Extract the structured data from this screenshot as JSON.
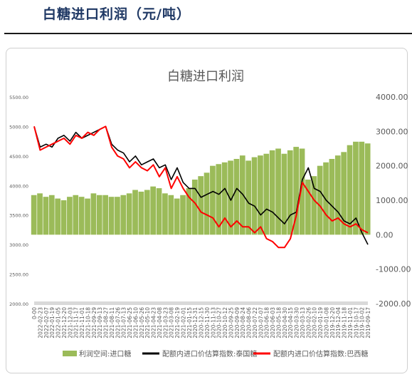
{
  "header": {
    "title": "白糖进口利润（元/吨）"
  },
  "chart_data": {
    "type": "line",
    "title": "白糖进口利润",
    "y_left": {
      "ticks": [
        "5500.00",
        "5000.00",
        "4500.00",
        "4000.00",
        "3500.00",
        "3000.00",
        "2500.00",
        "2000.00"
      ],
      "range": [
        2000,
        5500
      ]
    },
    "y_right": {
      "ticks": [
        "4000.00",
        "3000.00",
        "2000.00",
        "1000.00",
        "0.00",
        "-1000.00",
        "-2000.00"
      ],
      "range": [
        -2000,
        4000
      ]
    },
    "x_ticks": [
      "0-00",
      "2022-02-23",
      "2022-02-07",
      "2022-01-19",
      "2022-01-05",
      "2021-12-20",
      "2021-12-03",
      "2021-11-17",
      "2021-11-01",
      "2021-10-18",
      "2021-09-29",
      "2021-09-13",
      "2021-08-27",
      "2021-08-11",
      "2021-07-26",
      "2021-07-13",
      "2021-06-25",
      "2021-06-10",
      "2021-05-26",
      "2021-05-10",
      "2021-04-23",
      "2021-04-08",
      "2021-03-23",
      "2021-03-08",
      "2021-02-19",
      "2021-02-01",
      "2021-01-15",
      "2020-12-31",
      "2020-12-15",
      "2020-11-30",
      "2020-11-13",
      "2020-10-27",
      "2020-10-12",
      "2020-09-25",
      "2020-09-09",
      "2020-08-24",
      "2020-08-06",
      "2020-07-22",
      "2020-07-07",
      "2020-06-18",
      "2020-06-03",
      "2020-05-18",
      "2020-04-30",
      "2020-04-15",
      "2020-03-30",
      "2020-03-13",
      "2020-02-26",
      "2020-02-10",
      "2020-01-19",
      "2020-01-08",
      "2019-12-20",
      "2019-12-04",
      "2019-11-18",
      "2019-11-01",
      "2019-10-17",
      "2019-10-02",
      "2019-09-17"
    ],
    "series": [
      {
        "name": "利润空间:进口糖",
        "axis": "right",
        "kind": "bar",
        "color": "#9bbb59",
        "values": [
          1150,
          1200,
          1100,
          1150,
          1050,
          1000,
          1100,
          1150,
          1100,
          1050,
          1200,
          1150,
          1150,
          1100,
          1100,
          1150,
          1200,
          1300,
          1250,
          1300,
          1400,
          1350,
          1200,
          1150,
          1050,
          1150,
          1350,
          1600,
          1700,
          1800,
          2000,
          2050,
          2100,
          2150,
          2200,
          2300,
          2150,
          2250,
          2300,
          2350,
          2450,
          2500,
          2350,
          2450,
          2550,
          2500,
          1600,
          1700,
          2000,
          2100,
          2200,
          2300,
          2400,
          2600,
          2700,
          2700,
          2650
        ]
      },
      {
        "name": "配额内进口价估算指数:泰国糖",
        "axis": "left",
        "kind": "line",
        "color": "#000000",
        "values": [
          5000,
          4650,
          4700,
          4650,
          4800,
          4850,
          4750,
          4900,
          4800,
          4850,
          4900,
          4950,
          5000,
          4700,
          4600,
          4550,
          4400,
          4500,
          4350,
          4400,
          4450,
          4300,
          4350,
          4100,
          4300,
          4050,
          3950,
          3950,
          3800,
          3850,
          3900,
          3850,
          3950,
          3750,
          3950,
          3850,
          3700,
          3650,
          3500,
          3600,
          3550,
          3450,
          3350,
          3500,
          3550,
          4100,
          4300,
          3950,
          3900,
          3750,
          3650,
          3550,
          3400,
          3350,
          3450,
          3200,
          3000
        ]
      },
      {
        "name": "配额内进口价估算指数:巴西糖",
        "axis": "left",
        "kind": "line",
        "color": "#ff0000",
        "values": [
          5000,
          4600,
          4650,
          4700,
          4750,
          4800,
          4700,
          4850,
          4800,
          4900,
          4850,
          4950,
          5000,
          4650,
          4500,
          4450,
          4300,
          4400,
          4300,
          4250,
          4350,
          4150,
          4300,
          3950,
          4150,
          3950,
          3800,
          3700,
          3550,
          3500,
          3450,
          3300,
          3450,
          3300,
          3400,
          3300,
          3300,
          3200,
          3300,
          3100,
          3050,
          2950,
          2950,
          3100,
          3500,
          4050,
          3900,
          3750,
          3650,
          3500,
          3400,
          3450,
          3350,
          3300,
          3350,
          3250,
          3200
        ]
      }
    ]
  }
}
